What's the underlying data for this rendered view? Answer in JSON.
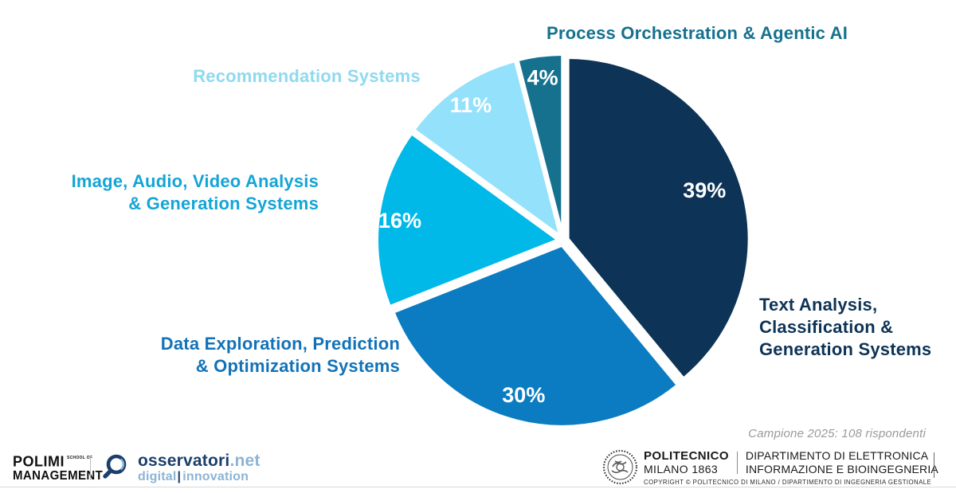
{
  "chart_data": {
    "type": "pie",
    "direction": "clockwise",
    "start_angle_deg": 0,
    "slices": [
      {
        "label": "Text Analysis, Classification & Generation Systems",
        "value": 39,
        "pct_label": "39%",
        "color": "#0D3356"
      },
      {
        "label": "Data Exploration, Prediction & Optimization Systems",
        "value": 30,
        "pct_label": "30%",
        "color": "#0B7CC1"
      },
      {
        "label": "Image, Audio, Video Analysis & Generation Systems",
        "value": 16,
        "pct_label": "16%",
        "color": "#00B9E8"
      },
      {
        "label": "Recommendation Systems",
        "value": 11,
        "pct_label": "11%",
        "color": "#93E1FB"
      },
      {
        "label": "Process Orchestration & Agentic AI",
        "value": 4,
        "pct_label": "4%",
        "color": "#15718E"
      }
    ],
    "value_label_color": "#FFFFFF",
    "legend_position": "around-pie-callouts",
    "note": "Campione 2025: 108 rispondenti"
  },
  "callouts": {
    "process": {
      "text": "Process Orchestration & Agentic AI",
      "color": "#15718E"
    },
    "recommendation": {
      "text": "Recommendation Systems",
      "color": "#8FD9F1"
    },
    "image_audio_video": {
      "text": "Image, Audio, Video Analysis\n& Generation Systems",
      "color": "#14A5D6"
    },
    "data_exploration": {
      "text": "Data Exploration, Prediction\n& Optimization Systems",
      "color": "#1272B8"
    },
    "text_analysis": {
      "text": "Text Analysis,\nClassification &\nGeneration Systems",
      "color": "#0D3356"
    }
  },
  "sample_note": "Campione 2025: 108 rispondenti",
  "footer": {
    "polimi": {
      "line1": "POLIMI",
      "line1_small": "SCHOOL OF",
      "line2": "MANAGEMENT"
    },
    "osservatori": {
      "brand": "osservatori",
      "brand_suffix": ".net",
      "tagline_left": "digital",
      "tagline_divider": "|",
      "tagline_right": "innovation"
    },
    "politecnico": {
      "name_line1": "POLITECNICO",
      "name_line2": "MILANO 1863",
      "dept_line1": "DIPARTIMENTO DI ELETTRONICA",
      "dept_line2": "INFORMAZIONE E BIOINGEGNERIA",
      "copyright": "COPYRIGHT © POLITECNICO DI MILANO / DIPARTIMENTO DI INGEGNERIA GESTIONALE"
    }
  }
}
